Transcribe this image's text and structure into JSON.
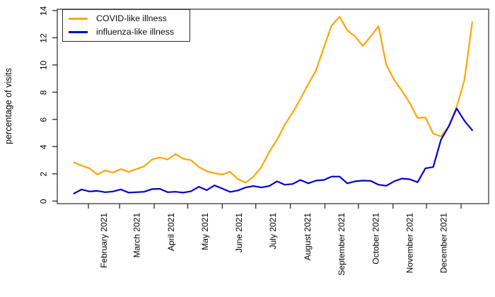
{
  "chart_data": {
    "type": "line",
    "title": "",
    "xlabel": "",
    "ylabel": "percentage of visits",
    "ylim": [
      0,
      14
    ],
    "y_ticks": [
      0,
      2,
      4,
      6,
      8,
      10,
      12,
      14
    ],
    "grid": false,
    "legend_position": "top-left",
    "x_unit": "weekly observations, Jan 2021 - Dec 2021",
    "months": [
      {
        "label": "February 2021",
        "days": 28
      },
      {
        "label": "March 2021",
        "days": 31
      },
      {
        "label": "April 2021",
        "days": 30
      },
      {
        "label": "May 2021",
        "days": 31
      },
      {
        "label": "June 2021",
        "days": 30
      },
      {
        "label": "July 2021",
        "days": 31
      },
      {
        "label": "August 2021",
        "days": 31
      },
      {
        "label": "September 2021",
        "days": 30
      },
      {
        "label": "October 2021",
        "days": 31
      },
      {
        "label": "November 2021",
        "days": 30
      },
      {
        "label": "December 2021",
        "days": 31
      }
    ],
    "series": [
      {
        "name": "COVID-like illness",
        "color": "#FFA500",
        "values": [
          2.85,
          2.6,
          2.4,
          1.95,
          2.25,
          2.1,
          2.35,
          2.15,
          2.35,
          2.55,
          3.05,
          3.2,
          3.05,
          3.45,
          3.1,
          3.0,
          2.5,
          2.2,
          2.05,
          1.95,
          2.15,
          1.6,
          1.35,
          1.8,
          2.5,
          3.6,
          4.5,
          5.6,
          6.5,
          7.5,
          8.6,
          9.6,
          11.3,
          12.9,
          13.55,
          12.55,
          12.1,
          11.4,
          12.1,
          12.85,
          10.0,
          8.9,
          8.1,
          7.2,
          6.1,
          6.15,
          4.95,
          4.75,
          5.5,
          6.9,
          8.9,
          13.15
        ]
      },
      {
        "name": "influenza-like illness",
        "color": "#0000CD",
        "values": [
          0.55,
          0.85,
          0.7,
          0.75,
          0.65,
          0.7,
          0.85,
          0.62,
          0.65,
          0.68,
          0.88,
          0.9,
          0.65,
          0.68,
          0.62,
          0.72,
          1.05,
          0.8,
          1.15,
          0.92,
          0.67,
          0.78,
          1.0,
          1.1,
          1.0,
          1.1,
          1.45,
          1.2,
          1.25,
          1.55,
          1.3,
          1.5,
          1.55,
          1.8,
          1.8,
          1.3,
          1.45,
          1.5,
          1.48,
          1.2,
          1.12,
          1.45,
          1.65,
          1.6,
          1.38,
          2.4,
          2.5,
          4.5,
          5.5,
          6.8,
          5.9,
          5.2
        ]
      }
    ]
  }
}
